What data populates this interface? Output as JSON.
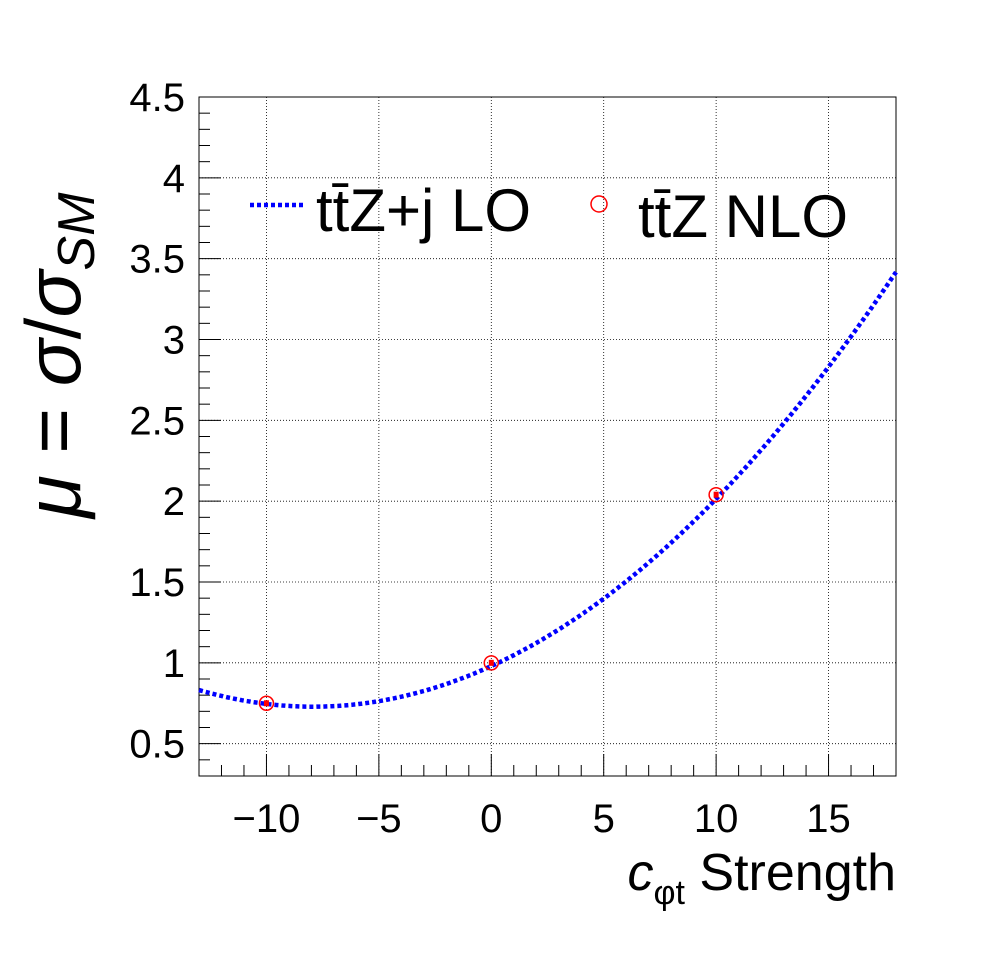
{
  "chart_data": {
    "type": "line",
    "xlabel": {
      "prefix": "c",
      "subscript": "φt",
      "suffix": " Strength"
    },
    "ylabel": {
      "mu": "μ",
      "eq": " = ",
      "sigma": "σ",
      "slash": "/",
      "sigma_sm": "σ",
      "sub": "SM"
    },
    "xlim": [
      -13,
      18
    ],
    "ylim": [
      0.3,
      4.5
    ],
    "x_ticks": [
      -10,
      -5,
      0,
      5,
      10,
      15
    ],
    "x_tick_labels": [
      "−10",
      "−5",
      "0",
      "5",
      "10",
      "15"
    ],
    "y_ticks": [
      0.5,
      1,
      1.5,
      2,
      2.5,
      3,
      3.5,
      4,
      4.5
    ],
    "y_tick_labels": [
      "0.5",
      "1",
      "1.5",
      "2",
      "2.5",
      "3",
      "3.5",
      "4",
      "4.5"
    ],
    "grid": true,
    "legend_position": "top",
    "series": [
      {
        "name": "tt̄Z+j LO",
        "style": "dotted-line",
        "color": "#0000ff",
        "curve": {
          "a": 0.004,
          "b": 0.0634,
          "c": 0.98
        },
        "x_range": [
          -13,
          18
        ]
      },
      {
        "name": "tt̄Z NLO",
        "style": "open-circle-marker",
        "color": "#ff0000",
        "points": [
          {
            "x": -10,
            "y": 0.75
          },
          {
            "x": 0,
            "y": 1.0
          },
          {
            "x": 10,
            "y": 2.04
          }
        ]
      }
    ],
    "legend": [
      {
        "label": "tt̄Z+j LO",
        "marker": "dotted-line"
      },
      {
        "label": "tt̄Z NLO",
        "marker": "open-circle"
      }
    ]
  }
}
